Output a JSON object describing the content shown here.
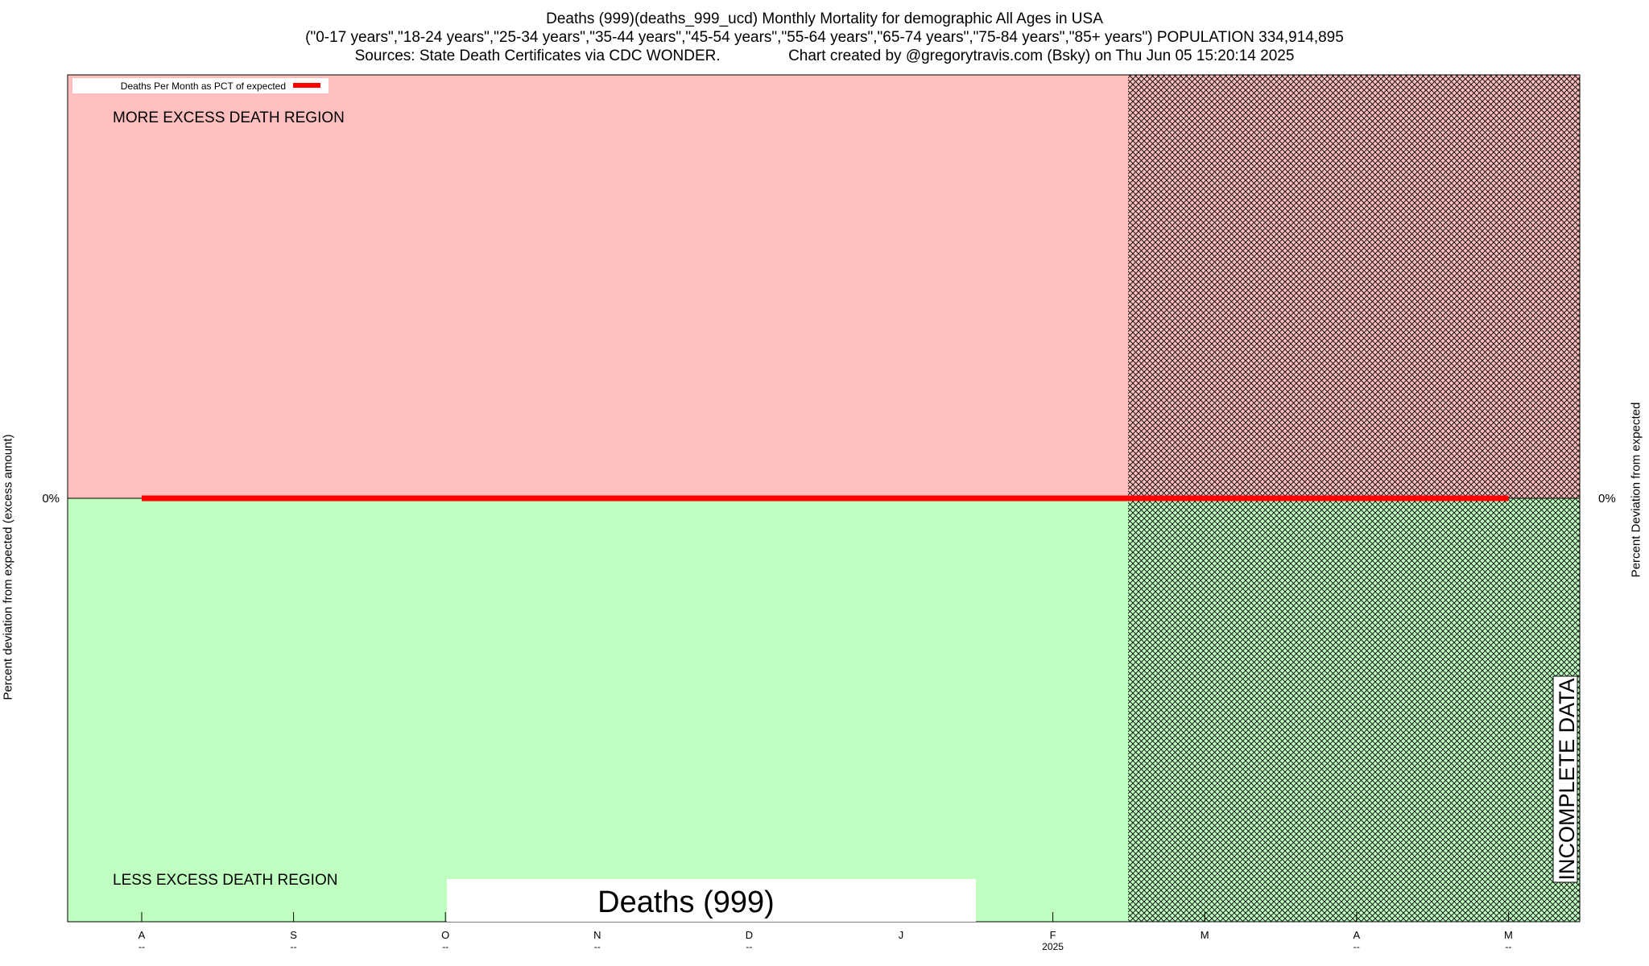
{
  "title_lines": [
    "Deaths (999)(deaths_999_ucd) Monthly Mortality for demographic All Ages in USA",
    "(\"0-17 years\",\"18-24 years\",\"25-34 years\",\"35-44 years\",\"45-54 years\",\"55-64 years\",\"65-74 years\",\"75-84 years\",\"85+ years\") POPULATION 334,914,895",
    "Sources: State Death Certificates via CDC WONDER.                Chart created by @gregorytravis.com (Bsky) on Thu Jun 05 15:20:14 2025"
  ],
  "left_axis_label": "Percent deviation from expected (excess amount)",
  "right_axis_label": "Percent Deviation from expected",
  "region_labels": {
    "more": "MORE EXCESS DEATH REGION",
    "less": "LESS EXCESS DEATH REGION",
    "incomplete": "INCOMPLETE DATA"
  },
  "overlay_title": "Deaths (999)",
  "colors": {
    "excess_region": "#ffbfbf",
    "less_region": "#bfffbf",
    "series_line": "#ff0000",
    "hatch": "#000000"
  },
  "chart_data": {
    "type": "line",
    "legend": {
      "position": "top-left",
      "entries": [
        "Deaths Per Month as PCT of expected"
      ]
    },
    "xlim_months": [
      "Aug",
      "May"
    ],
    "incomplete_from": "Mar 2025",
    "x_ticks": [
      {
        "label": "A",
        "sub": "--"
      },
      {
        "label": "S",
        "sub": "--"
      },
      {
        "label": "O",
        "sub": "--"
      },
      {
        "label": "N",
        "sub": "--"
      },
      {
        "label": "D",
        "sub": "--"
      },
      {
        "label": "J",
        "sub": ""
      },
      {
        "label": "F",
        "sub": "2025"
      },
      {
        "label": "M",
        "sub": ""
      },
      {
        "label": "A",
        "sub": "--"
      },
      {
        "label": "M",
        "sub": "--"
      }
    ],
    "y_ticks": [
      "0%"
    ],
    "series": [
      {
        "name": "Deaths Per Month as PCT of expected",
        "x": [
          "A",
          "S",
          "O",
          "N",
          "D",
          "J",
          "F",
          "M",
          "A",
          "M"
        ],
        "values": [
          0,
          0,
          0,
          0,
          0,
          0,
          0,
          0,
          0,
          0
        ]
      }
    ],
    "grid": false
  }
}
